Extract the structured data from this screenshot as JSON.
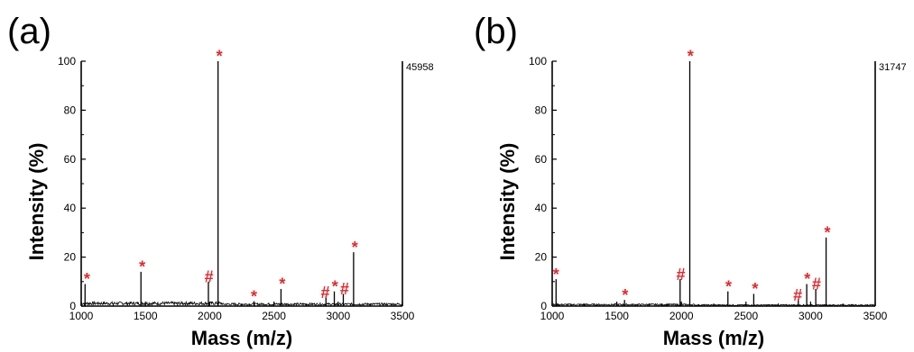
{
  "chart_data": [
    {
      "panel_label": "(a)",
      "type": "line",
      "xlabel": "Mass (m/z)",
      "ylabel": "Intensity (%)",
      "xlim": [
        1000,
        3500
      ],
      "ylim": [
        0,
        100
      ],
      "xticks": [
        1000,
        1500,
        2000,
        2500,
        3000,
        3500
      ],
      "yticks": [
        0,
        20,
        40,
        60,
        80,
        100
      ],
      "max_intensity_label": "45958",
      "baseline_level": 1.5,
      "peaks": [
        {
          "x": 1030,
          "y": 9
        },
        {
          "x": 1465,
          "y": 14
        },
        {
          "x": 1990,
          "y": 10
        },
        {
          "x": 2065,
          "y": 100
        },
        {
          "x": 2345,
          "y": 2
        },
        {
          "x": 2555,
          "y": 7
        },
        {
          "x": 2905,
          "y": 4
        },
        {
          "x": 2970,
          "y": 6
        },
        {
          "x": 3040,
          "y": 5
        },
        {
          "x": 3120,
          "y": 22
        }
      ],
      "annotations": [
        {
          "x": 1045,
          "y": 8,
          "text": "*"
        },
        {
          "x": 1475,
          "y": 13,
          "text": "*"
        },
        {
          "x": 1995,
          "y": 9,
          "text": "#"
        },
        {
          "x": 2075,
          "y": 99,
          "text": "*"
        },
        {
          "x": 2345,
          "y": 1,
          "text": "*"
        },
        {
          "x": 2565,
          "y": 6,
          "text": "*"
        },
        {
          "x": 2900,
          "y": 2.5,
          "text": "#"
        },
        {
          "x": 2975,
          "y": 5,
          "text": "*"
        },
        {
          "x": 3050,
          "y": 4,
          "text": "#"
        },
        {
          "x": 3130,
          "y": 21,
          "text": "*"
        }
      ]
    },
    {
      "panel_label": "(b)",
      "type": "line",
      "xlabel": "Mass (m/z)",
      "ylabel": "Intensity (%)",
      "xlim": [
        1000,
        3500
      ],
      "ylim": [
        0,
        100
      ],
      "xticks": [
        1000,
        1500,
        2000,
        2500,
        3000,
        3500
      ],
      "yticks": [
        0,
        20,
        40,
        60,
        80,
        100
      ],
      "max_intensity_label": "31747",
      "baseline_level": 0.8,
      "peaks": [
        {
          "x": 1030,
          "y": 11
        },
        {
          "x": 1560,
          "y": 2.5
        },
        {
          "x": 1990,
          "y": 11
        },
        {
          "x": 2065,
          "y": 100
        },
        {
          "x": 2360,
          "y": 6
        },
        {
          "x": 2560,
          "y": 5
        },
        {
          "x": 2905,
          "y": 3
        },
        {
          "x": 2970,
          "y": 9
        },
        {
          "x": 3040,
          "y": 7
        },
        {
          "x": 3120,
          "y": 28
        }
      ],
      "annotations": [
        {
          "x": 1030,
          "y": 10,
          "text": "*"
        },
        {
          "x": 1565,
          "y": 1.5,
          "text": "*"
        },
        {
          "x": 1995,
          "y": 10,
          "text": "#"
        },
        {
          "x": 2070,
          "y": 99,
          "text": "*"
        },
        {
          "x": 2365,
          "y": 5,
          "text": "*"
        },
        {
          "x": 2570,
          "y": 4,
          "text": "*"
        },
        {
          "x": 2900,
          "y": 1.5,
          "text": "#"
        },
        {
          "x": 2975,
          "y": 8,
          "text": "*"
        },
        {
          "x": 3045,
          "y": 6,
          "text": "#"
        },
        {
          "x": 3130,
          "y": 27,
          "text": "*"
        }
      ]
    }
  ],
  "colors": {
    "trace": "#000000",
    "annotation": "#e8262b",
    "axis": "#000000"
  }
}
